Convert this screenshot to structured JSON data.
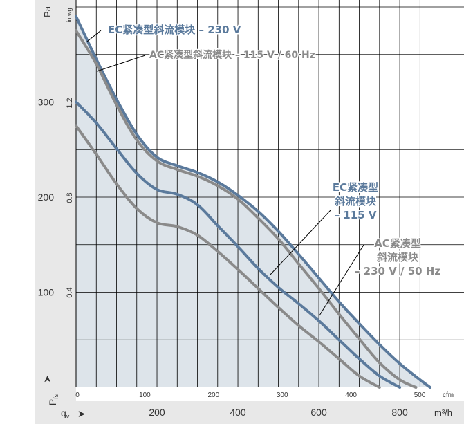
{
  "chart_data": {
    "type": "line",
    "title": "",
    "units": {
      "pa": "Pa",
      "inwg": "in wg",
      "cfm": "cfm",
      "m3h": "m³/h",
      "pfs_main": "P",
      "pfs_sub": "fs",
      "qv_main": "q",
      "qv_sub": "v"
    },
    "y_pa_ticks": [
      "100",
      "200",
      "300"
    ],
    "y_pa_values": [
      100,
      200,
      300
    ],
    "y_inwg_ticks": [
      "0.4",
      "0.8",
      "1.2"
    ],
    "y_inwg_values": [
      0.4,
      0.8,
      1.2
    ],
    "x_cfm_ticks": [
      "0",
      "100",
      "200",
      "300",
      "400",
      "500"
    ],
    "x_cfm_values": [
      0,
      100,
      200,
      300,
      400,
      500
    ],
    "x_m3h_ticks": [
      "200",
      "400",
      "600",
      "800"
    ],
    "x_m3h_values": [
      200,
      400,
      600,
      800
    ],
    "xlim_m3h": [
      0,
      940
    ],
    "ylim_pa": [
      0,
      400
    ],
    "grid": true,
    "series": [
      {
        "name": "EC紧凑型斜流模块 – 230 V",
        "color": "#5b7a9c",
        "x": [
          0,
          50,
          100,
          150,
          200,
          250,
          300,
          350,
          400,
          450,
          500,
          550,
          600,
          650,
          700,
          750,
          800,
          850,
          875
        ],
        "y": [
          390,
          345,
          303,
          266,
          242,
          233,
          226,
          216,
          202,
          185,
          164,
          140,
          115,
          90,
          67,
          45,
          25,
          8,
          0
        ]
      },
      {
        "name": "AC紧凑型斜流模块 – 115 V / 60 Hz",
        "color": "#8a8a8a",
        "x": [
          0,
          50,
          100,
          150,
          200,
          250,
          300,
          350,
          400,
          450,
          500,
          550,
          600,
          650,
          700,
          750,
          800,
          840
        ],
        "y": [
          375,
          340,
          297,
          260,
          238,
          229,
          222,
          212,
          198,
          178,
          156,
          130,
          104,
          77,
          51,
          26,
          8,
          0
        ]
      },
      {
        "name": "EC紧凑型斜流模块 – 115 V",
        "color": "#5b7a9c",
        "x": [
          0,
          50,
          100,
          150,
          200,
          250,
          300,
          350,
          400,
          450,
          500,
          550,
          600,
          650,
          700,
          750,
          800
        ],
        "y": [
          300,
          278,
          251,
          225,
          208,
          203,
          192,
          170,
          148,
          125,
          105,
          88,
          70,
          50,
          30,
          12,
          0
        ]
      },
      {
        "name": "AC紧凑型斜流模块 – 230 V / 50 Hz",
        "color": "#8a8a8a",
        "x": [
          0,
          50,
          100,
          150,
          200,
          250,
          300,
          350,
          400,
          450,
          500,
          550,
          600,
          650,
          700,
          750
        ],
        "y": [
          275,
          245,
          214,
          188,
          173,
          169,
          160,
          143,
          124,
          104,
          84,
          65,
          48,
          30,
          12,
          0
        ]
      }
    ],
    "annotations": [
      {
        "lines": [
          "EC紧凑型斜流模块 – 230 V"
        ],
        "color": "#5b7a9c"
      },
      {
        "lines": [
          "AC紧凑型斜流模块 – 115 V / 60 Hz"
        ],
        "color": "#8a8a8a"
      },
      {
        "lines": [
          "EC紧凑型",
          "斜流模块",
          "– 115 V"
        ],
        "color": "#5b7a9c"
      },
      {
        "lines": [
          "AC紧凑型",
          "斜流模块",
          "– 230 V / 50 Hz"
        ],
        "color": "#8a8a8a"
      }
    ],
    "envelope_color": "#dde4ea"
  }
}
